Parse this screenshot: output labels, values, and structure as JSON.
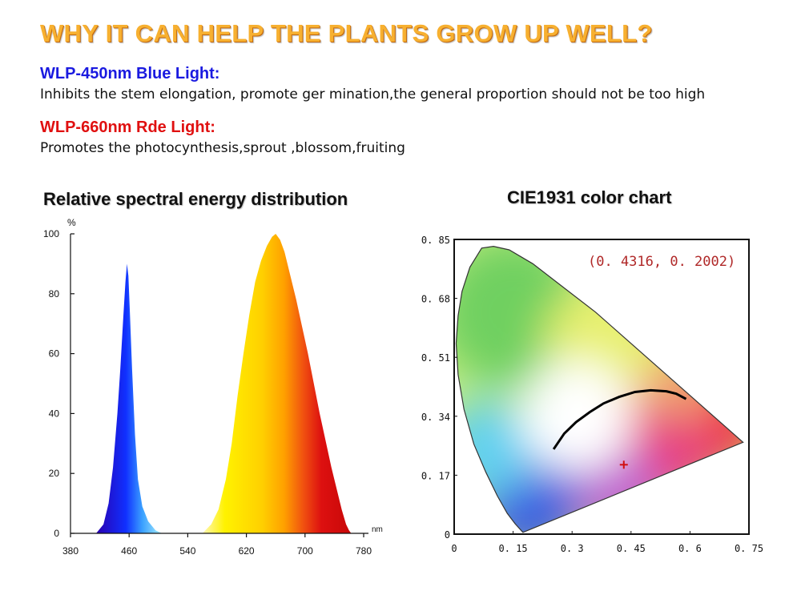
{
  "headline": "WHY IT CAN HELP THE PLANTS GROW UP WELL?",
  "blue_section": {
    "title": "WLP-450nm Blue Light:",
    "body": "Inhibits the stem elongation, promote ger mination,the general proportion should not be too high",
    "color": "#1a1ae0"
  },
  "red_section": {
    "title": "WLP-660nm Rde Light:",
    "body": "Promotes the photocynthesis,sprout ,blossom,fruiting",
    "color": "#e01010"
  },
  "colors": {
    "headline": "#f7b030",
    "headline_shadow": "#c46a10"
  },
  "chart_data": [
    {
      "type": "area",
      "title": "Relative spectral energy distribution",
      "y_unit": "%",
      "x_unit": "nm",
      "x_ticks": [
        "380",
        "460",
        "540",
        "620",
        "700",
        "780"
      ],
      "y_ticks": [
        "0",
        "20",
        "40",
        "60",
        "80",
        "100"
      ],
      "xlim": [
        380,
        780
      ],
      "ylim": [
        0,
        100
      ],
      "series": [
        {
          "peak_wavelength": 457,
          "values": [
            [
              415,
              0
            ],
            [
              425,
              3
            ],
            [
              432,
              10
            ],
            [
              438,
              22
            ],
            [
              444,
              40
            ],
            [
              448,
              55
            ],
            [
              452,
              72
            ],
            [
              455,
              84
            ],
            [
              457,
              90
            ],
            [
              459,
              86
            ],
            [
              461,
              74
            ],
            [
              464,
              55
            ],
            [
              468,
              33
            ],
            [
              472,
              18
            ],
            [
              478,
              9
            ],
            [
              486,
              4
            ],
            [
              496,
              1
            ],
            [
              505,
              0
            ]
          ]
        },
        {
          "peak_wavelength": 660,
          "values": [
            [
              560,
              0
            ],
            [
              572,
              3
            ],
            [
              582,
              8
            ],
            [
              592,
              18
            ],
            [
              600,
              30
            ],
            [
              608,
              46
            ],
            [
              616,
              60
            ],
            [
              624,
              73
            ],
            [
              632,
              84
            ],
            [
              640,
              91
            ],
            [
              648,
              96
            ],
            [
              655,
              99
            ],
            [
              660,
              100
            ],
            [
              666,
              98
            ],
            [
              672,
              94
            ],
            [
              680,
              86
            ],
            [
              688,
              78
            ],
            [
              696,
              69
            ],
            [
              704,
              60
            ],
            [
              712,
              50
            ],
            [
              720,
              40
            ],
            [
              728,
              31
            ],
            [
              736,
              22
            ],
            [
              744,
              14
            ],
            [
              750,
              8
            ],
            [
              756,
              3
            ],
            [
              760,
              1
            ],
            [
              763,
              0
            ]
          ]
        }
      ]
    },
    {
      "type": "scatter",
      "title": "CIE1931 color chart",
      "annotation": "(0. 4316,  0. 2002)",
      "x_ticks": [
        "0",
        "0. 15",
        "0. 3",
        "0. 45",
        "0. 6",
        "0. 75"
      ],
      "y_ticks": [
        "0",
        "0. 17",
        "0. 34",
        "0. 51",
        "0. 68",
        "0. 85"
      ],
      "xlim": [
        0,
        0.75
      ],
      "ylim": [
        0,
        0.85
      ],
      "point": {
        "x": 0.4316,
        "y": 0.2002
      },
      "spectral_locus": [
        [
          0.175,
          0.005
        ],
        [
          0.155,
          0.03
        ],
        [
          0.135,
          0.06
        ],
        [
          0.11,
          0.11
        ],
        [
          0.08,
          0.18
        ],
        [
          0.05,
          0.26
        ],
        [
          0.025,
          0.36
        ],
        [
          0.01,
          0.46
        ],
        [
          0.005,
          0.55
        ],
        [
          0.01,
          0.63
        ],
        [
          0.02,
          0.7
        ],
        [
          0.04,
          0.77
        ],
        [
          0.07,
          0.825
        ],
        [
          0.1,
          0.83
        ],
        [
          0.14,
          0.82
        ],
        [
          0.2,
          0.78
        ],
        [
          0.28,
          0.71
        ],
        [
          0.36,
          0.64
        ],
        [
          0.44,
          0.56
        ],
        [
          0.52,
          0.48
        ],
        [
          0.6,
          0.4
        ],
        [
          0.68,
          0.32
        ],
        [
          0.735,
          0.265
        ]
      ],
      "planckian_locus": [
        [
          0.253,
          0.245
        ],
        [
          0.28,
          0.29
        ],
        [
          0.31,
          0.323
        ],
        [
          0.345,
          0.352
        ],
        [
          0.38,
          0.377
        ],
        [
          0.42,
          0.396
        ],
        [
          0.46,
          0.41
        ],
        [
          0.5,
          0.415
        ],
        [
          0.54,
          0.412
        ],
        [
          0.565,
          0.405
        ],
        [
          0.59,
          0.39
        ]
      ]
    }
  ]
}
